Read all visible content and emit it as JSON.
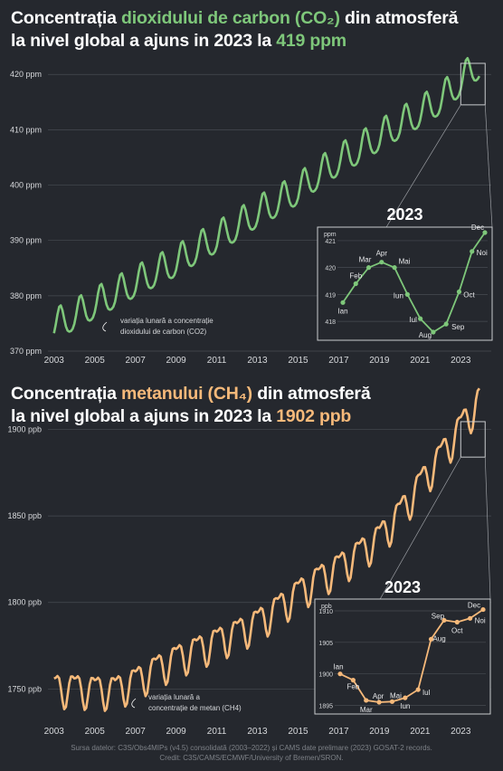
{
  "co2": {
    "title_line1_pre": "Concentrația ",
    "title_line1_hl": "dioxidului de carbon (CO₂)",
    "title_line1_post": " din atmosferă",
    "title_line2_pre": "la nivel global a ajuns in 2023 la ",
    "title_line2_hl": "419 ppm",
    "annotation_line1": "variația lunară a concentrație",
    "annotation_line2": "dioxidului de carbon (CO2)",
    "inset_title": "2023",
    "inset_unit": "ppm",
    "color": "#7ec77a"
  },
  "ch4": {
    "title_line1_pre": "Concentrația ",
    "title_line1_hl": "metanului (CH₄)",
    "title_line1_post": " din atmosferă",
    "title_line2_pre": "la nivel global a ajuns in 2023 la ",
    "title_line2_hl": "1902 ppb",
    "annotation_line1": "variația lunară a",
    "annotation_line2": "concentrație de metan (CH4)",
    "inset_title": "2023",
    "inset_unit": "ppb",
    "color": "#f6b97a"
  },
  "credits": {
    "line1": "Sursa datelor:  C3S/Obs4MIPs (v4.5) consolidată (2003–2022) și CAMS date prelimare (2023) GOSAT-2 records.",
    "line2": "Credit: C3S/CAMS/ECMWF/University of Bremen/SRON."
  },
  "chart_data": [
    {
      "type": "line",
      "title": "Concentrația dioxidului de carbon (CO₂) din atmosferă la nivel global a ajuns in 2023 la 419 ppm",
      "ylim": [
        370,
        422
      ],
      "yticks": [
        370,
        380,
        390,
        400,
        410,
        420
      ],
      "ytick_labels": [
        "370 ppm",
        "380 ppm",
        "390 ppm",
        "400 ppm",
        "410 ppm",
        "420 ppm"
      ],
      "xlim": [
        2002.7,
        2024.5
      ],
      "xticks": [
        2003,
        2005,
        2007,
        2009,
        2011,
        2013,
        2015,
        2017,
        2019,
        2021,
        2023
      ],
      "annual_means": [
        [
          2003,
          374.5
        ],
        [
          2004,
          376.2
        ],
        [
          2005,
          378.3
        ],
        [
          2006,
          380.2
        ],
        [
          2007,
          382.2
        ],
        [
          2008,
          384.1
        ],
        [
          2009,
          385.9
        ],
        [
          2010,
          388.2
        ],
        [
          2011,
          390.2
        ],
        [
          2012,
          392.4
        ],
        [
          2013,
          394.8
        ],
        [
          2014,
          396.8
        ],
        [
          2015,
          398.9
        ],
        [
          2016,
          401.8
        ],
        [
          2017,
          404.2
        ],
        [
          2018,
          406.3
        ],
        [
          2019,
          408.6
        ],
        [
          2020,
          410.8
        ],
        [
          2021,
          412.9
        ],
        [
          2022,
          415.2
        ],
        [
          2023,
          418.6
        ]
      ],
      "seasonal_amplitude": 2.8,
      "grid": true
    },
    {
      "type": "line",
      "title": "2023",
      "ylim": [
        417.5,
        421.3
      ],
      "yticks": [
        418,
        419,
        420,
        421
      ],
      "series": [
        {
          "x": [
            "Ian",
            "Feb",
            "Mar",
            "Apr",
            "Mai",
            "Iun",
            "Iul",
            "Aug",
            "Sep",
            "Oct",
            "Noi",
            "Dec"
          ],
          "values": [
            418.7,
            419.4,
            420.0,
            420.2,
            420.0,
            419.0,
            418.1,
            417.6,
            417.9,
            419.1,
            420.6,
            421.3
          ]
        }
      ],
      "grid": true
    },
    {
      "type": "line",
      "title": "Concentrația metanului (CH₄) din atmosferă la nivel global a ajuns in 2023 la 1902 ppb",
      "ylim": [
        1735,
        1905
      ],
      "yticks": [
        1750,
        1800,
        1850,
        1900
      ],
      "ytick_labels": [
        "1750 ppb",
        "1800 ppb",
        "1850 ppb",
        "1900 ppb"
      ],
      "xlim": [
        2002.7,
        2024.5
      ],
      "xticks": [
        2003,
        2005,
        2007,
        2009,
        2011,
        2013,
        2015,
        2017,
        2019,
        2021,
        2023
      ],
      "annual_means": [
        [
          2003,
          1751
        ],
        [
          2004,
          1751
        ],
        [
          2005,
          1750
        ],
        [
          2006,
          1750
        ],
        [
          2007,
          1755
        ],
        [
          2008,
          1762
        ],
        [
          2009,
          1768
        ],
        [
          2010,
          1773
        ],
        [
          2011,
          1778
        ],
        [
          2012,
          1783
        ],
        [
          2013,
          1789
        ],
        [
          2014,
          1797
        ],
        [
          2015,
          1806
        ],
        [
          2016,
          1814
        ],
        [
          2017,
          1821
        ],
        [
          2018,
          1829
        ],
        [
          2019,
          1838
        ],
        [
          2020,
          1852
        ],
        [
          2021,
          1869
        ],
        [
          2022,
          1885
        ],
        [
          2023,
          1902
        ]
      ],
      "seasonal_amplitude": 9,
      "grid": true
    },
    {
      "type": "line",
      "title": "2023",
      "ylim": [
        1894.5,
        1911
      ],
      "yticks": [
        1895,
        1900,
        1905,
        1910
      ],
      "series": [
        {
          "x": [
            "Ian",
            "Feb",
            "Mar",
            "Apr",
            "Mai",
            "Iun",
            "Iul",
            "Aug",
            "Sep",
            "Oct",
            "Noi",
            "Dec"
          ],
          "values": [
            1900.0,
            1899.0,
            1895.8,
            1895.5,
            1895.6,
            1896.2,
            1897.5,
            1905.5,
            1908.5,
            1908.2,
            1908.8,
            1910.2
          ]
        }
      ],
      "grid": true
    }
  ]
}
